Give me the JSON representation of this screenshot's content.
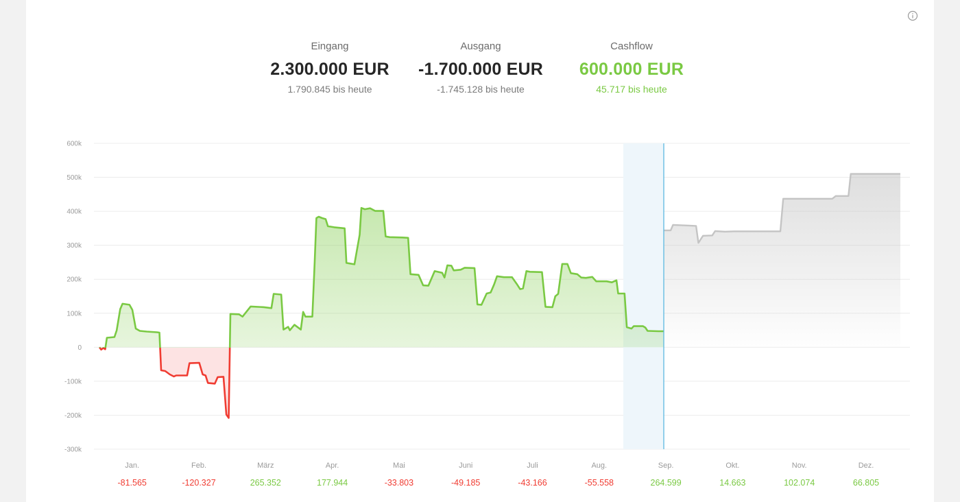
{
  "kpis": {
    "eingang": {
      "label": "Eingang",
      "value": "2.300.000 EUR",
      "sub": "1.790.845 bis heute"
    },
    "ausgang": {
      "label": "Ausgang",
      "value": "-1.700.000 EUR",
      "sub": "-1.745.128 bis heute"
    },
    "cashflow": {
      "label": "Cashflow",
      "value": "600.000 EUR",
      "sub": "45.717 bis heute"
    }
  },
  "icons": {
    "info": "info-icon"
  },
  "colors": {
    "positive": "#7ac943",
    "negative": "#f03c32",
    "forecast": "#c4c4c4",
    "today_line": "#5bb8e0",
    "today_band": "#eef6fb"
  },
  "chart_data": {
    "type": "area",
    "y_ticks": [
      "600k",
      "500k",
      "400k",
      "300k",
      "200k",
      "100k",
      "0",
      "-100k",
      "-200k",
      "-300k"
    ],
    "ylim": [
      -300000,
      600000
    ],
    "months": [
      "Jan.",
      "Feb.",
      "März",
      "Apr.",
      "Mai",
      "Juni",
      "Juli",
      "Aug.",
      "Sep.",
      "Okt.",
      "Nov.",
      "Dez."
    ],
    "month_totals": [
      {
        "label": "-81.565",
        "value": -81565
      },
      {
        "label": "-120.327",
        "value": -120327
      },
      {
        "label": "265.352",
        "value": 265352
      },
      {
        "label": "177.944",
        "value": 177944
      },
      {
        "label": "-33.803",
        "value": -33803
      },
      {
        "label": "-49.185",
        "value": -49185
      },
      {
        "label": "-43.166",
        "value": -43166
      },
      {
        "label": "-55.558",
        "value": -55558
      },
      {
        "label": "264.599",
        "value": 264599
      },
      {
        "label": "14.663",
        "value": 14663
      },
      {
        "label": "102.074",
        "value": 102074
      },
      {
        "label": "66.805",
        "value": 66805
      }
    ],
    "today_month_position": 8.5,
    "series": [
      {
        "name": "actual",
        "points": [
          [
            0.0,
            0
          ],
          [
            0.03,
            -7000
          ],
          [
            0.07,
            -2000
          ],
          [
            0.1,
            -6000
          ],
          [
            0.13,
            28000
          ],
          [
            0.26,
            30000
          ],
          [
            0.3,
            50000
          ],
          [
            0.36,
            112000
          ],
          [
            0.4,
            128000
          ],
          [
            0.52,
            125000
          ],
          [
            0.57,
            110000
          ],
          [
            0.63,
            55000
          ],
          [
            0.7,
            48000
          ],
          [
            0.82,
            46000
          ],
          [
            1.0,
            44000
          ],
          [
            1.04,
            43000
          ],
          [
            1.07,
            -68000
          ],
          [
            1.14,
            -70000
          ],
          [
            1.22,
            -80000
          ],
          [
            1.29,
            -86000
          ],
          [
            1.33,
            -83000
          ],
          [
            1.52,
            -83000
          ],
          [
            1.56,
            -47000
          ],
          [
            1.73,
            -46000
          ],
          [
            1.79,
            -80000
          ],
          [
            1.84,
            -83000
          ],
          [
            1.88,
            -105000
          ],
          [
            2.0,
            -107000
          ],
          [
            2.05,
            -88000
          ],
          [
            2.15,
            -87000
          ],
          [
            2.2,
            -198000
          ],
          [
            2.24,
            -208000
          ],
          [
            2.27,
            98000
          ],
          [
            2.42,
            97000
          ],
          [
            2.48,
            90000
          ],
          [
            2.62,
            120000
          ],
          [
            2.85,
            118000
          ],
          [
            2.98,
            115000
          ],
          [
            3.02,
            157000
          ],
          [
            3.15,
            155000
          ],
          [
            3.19,
            52000
          ],
          [
            3.27,
            60000
          ],
          [
            3.3,
            50000
          ],
          [
            3.38,
            66000
          ],
          [
            3.49,
            52000
          ],
          [
            3.53,
            104000
          ],
          [
            3.57,
            90000
          ],
          [
            3.69,
            90000
          ],
          [
            3.73,
            250000
          ],
          [
            3.76,
            380000
          ],
          [
            3.8,
            384000
          ],
          [
            3.86,
            380000
          ],
          [
            3.92,
            377000
          ],
          [
            3.96,
            356000
          ],
          [
            4.07,
            353000
          ],
          [
            4.25,
            350000
          ],
          [
            4.28,
            248000
          ],
          [
            4.42,
            244000
          ],
          [
            4.51,
            331000
          ],
          [
            4.54,
            410000
          ],
          [
            4.6,
            406000
          ],
          [
            4.69,
            409000
          ],
          [
            4.78,
            401000
          ],
          [
            4.92,
            401000
          ],
          [
            4.96,
            326000
          ],
          [
            5.03,
            324000
          ],
          [
            5.25,
            323000
          ],
          [
            5.35,
            322000
          ],
          [
            5.39,
            215000
          ],
          [
            5.53,
            213000
          ],
          [
            5.61,
            182000
          ],
          [
            5.7,
            181000
          ],
          [
            5.81,
            224000
          ],
          [
            5.94,
            219000
          ],
          [
            5.98,
            205000
          ],
          [
            6.03,
            241000
          ],
          [
            6.1,
            240000
          ],
          [
            6.14,
            226000
          ],
          [
            6.26,
            228000
          ],
          [
            6.33,
            234000
          ],
          [
            6.5,
            233000
          ],
          [
            6.55,
            126000
          ],
          [
            6.62,
            125000
          ],
          [
            6.71,
            158000
          ],
          [
            6.78,
            161000
          ],
          [
            6.84,
            185000
          ],
          [
            6.89,
            209000
          ],
          [
            7.01,
            206000
          ],
          [
            7.15,
            206000
          ],
          [
            7.23,
            187000
          ],
          [
            7.29,
            171000
          ],
          [
            7.34,
            173000
          ],
          [
            7.4,
            224000
          ],
          [
            7.46,
            222000
          ],
          [
            7.67,
            221000
          ],
          [
            7.73,
            119000
          ],
          [
            7.85,
            118000
          ],
          [
            7.9,
            150000
          ],
          [
            7.95,
            157000
          ],
          [
            8.02,
            245000
          ],
          [
            8.11,
            245000
          ],
          [
            8.17,
            218000
          ],
          [
            8.28,
            215000
          ],
          [
            8.35,
            205000
          ],
          [
            8.43,
            204000
          ],
          [
            8.54,
            207000
          ],
          [
            8.61,
            194000
          ],
          [
            8.79,
            194000
          ],
          [
            8.88,
            191000
          ],
          [
            8.96,
            197000
          ],
          [
            8.99,
            158000
          ],
          [
            9.1,
            158000
          ],
          [
            9.14,
            59000
          ],
          [
            9.22,
            55000
          ],
          [
            9.26,
            62000
          ],
          [
            9.42,
            62000
          ],
          [
            9.46,
            58000
          ],
          [
            9.5,
            48000
          ],
          [
            9.69,
            47000
          ],
          [
            9.78,
            47000
          ]
        ]
      },
      {
        "name": "forecast",
        "points": [
          [
            9.78,
            344000
          ],
          [
            9.9,
            344000
          ],
          [
            9.94,
            360000
          ],
          [
            10.22,
            358000
          ],
          [
            10.34,
            357000
          ],
          [
            10.38,
            307000
          ],
          [
            10.46,
            328000
          ],
          [
            10.62,
            329000
          ],
          [
            10.67,
            342000
          ],
          [
            10.84,
            340000
          ],
          [
            11.0,
            341000
          ],
          [
            11.8,
            341000
          ],
          [
            11.85,
            437000
          ],
          [
            12.7,
            437000
          ],
          [
            12.76,
            445000
          ],
          [
            12.98,
            445000
          ],
          [
            13.02,
            510000
          ],
          [
            13.88,
            510000
          ]
        ]
      }
    ]
  }
}
